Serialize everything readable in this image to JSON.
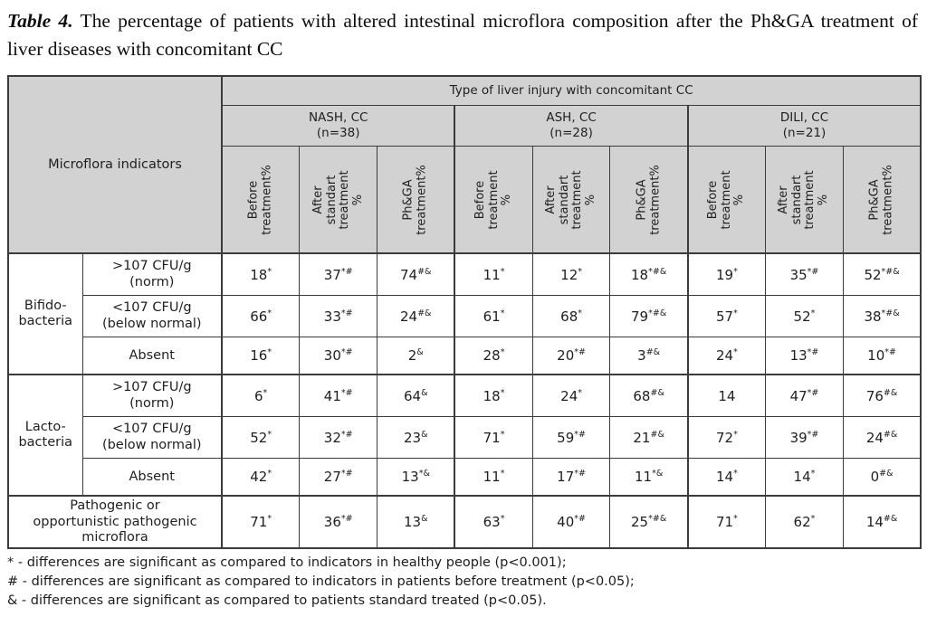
{
  "title": {
    "label": "Table 4.",
    "text": "The percentage of patients with altered intestinal microflora composition after the Ph&GA treatment of liver diseases with concomitant CC"
  },
  "table": {
    "corner_label": "Microflora indicators",
    "top_header": "Type of liver injury with concomitant CC",
    "groups": [
      {
        "name": "NASH, CC\n(n=38)",
        "columns": [
          "Before\ntreatment%",
          "After\nstandart\ntreatment\n%",
          "Ph&GA\ntreatment%"
        ]
      },
      {
        "name": "ASH, CC\n(n=28)",
        "columns": [
          "Before\ntreatment\n%",
          "After\nstandart\ntreatment\n%",
          "Ph&GA\ntreatment%"
        ]
      },
      {
        "name": "DILI, CC\n(n=21)",
        "columns": [
          "Before\ntreatment\n%",
          "After\nstandart\ntreatment\n%",
          "Ph&GA\ntreatment%"
        ]
      }
    ],
    "row_groups": [
      {
        "label": "Bifido-\nbacteria",
        "rows": [
          {
            "indicator": ">107 CFU/g\n(norm)",
            "cells": [
              {
                "v": "18",
                "s": "*"
              },
              {
                "v": "37",
                "s": "*#"
              },
              {
                "v": "74",
                "s": "#&"
              },
              {
                "v": "11",
                "s": "*"
              },
              {
                "v": "12",
                "s": "*"
              },
              {
                "v": "18",
                "s": "*#&"
              },
              {
                "v": "19",
                "s": "*"
              },
              {
                "v": "35",
                "s": "*#"
              },
              {
                "v": "52",
                "s": "*#&"
              }
            ]
          },
          {
            "indicator": "<107 CFU/g\n(below normal)",
            "cells": [
              {
                "v": "66",
                "s": "*"
              },
              {
                "v": "33",
                "s": "*#"
              },
              {
                "v": "24",
                "s": "#&"
              },
              {
                "v": "61",
                "s": "*"
              },
              {
                "v": "68",
                "s": "*"
              },
              {
                "v": "79",
                "s": "*#&"
              },
              {
                "v": "57",
                "s": "*"
              },
              {
                "v": "52",
                "s": "*"
              },
              {
                "v": "38",
                "s": "*#&"
              }
            ]
          },
          {
            "indicator": "Absent",
            "cells": [
              {
                "v": "16",
                "s": "*"
              },
              {
                "v": "30",
                "s": "*#"
              },
              {
                "v": "2",
                "s": "&"
              },
              {
                "v": "28",
                "s": "*"
              },
              {
                "v": "20",
                "s": "*#"
              },
              {
                "v": "3",
                "s": "#&"
              },
              {
                "v": "24",
                "s": "*"
              },
              {
                "v": "13",
                "s": "*#"
              },
              {
                "v": "10",
                "s": "*#"
              }
            ]
          }
        ]
      },
      {
        "label": "Lacto-\nbacteria",
        "rows": [
          {
            "indicator": ">107 CFU/g\n(norm)",
            "cells": [
              {
                "v": "6",
                "s": "*"
              },
              {
                "v": "41",
                "s": "*#"
              },
              {
                "v": "64",
                "s": "&"
              },
              {
                "v": "18",
                "s": "*"
              },
              {
                "v": "24",
                "s": "*"
              },
              {
                "v": "68",
                "s": "#&"
              },
              {
                "v": "14",
                "s": ""
              },
              {
                "v": "47",
                "s": "*#"
              },
              {
                "v": "76",
                "s": "#&"
              }
            ]
          },
          {
            "indicator": "<107 CFU/g\n(below normal)",
            "cells": [
              {
                "v": "52",
                "s": "*"
              },
              {
                "v": "32",
                "s": "*#"
              },
              {
                "v": "23",
                "s": "&"
              },
              {
                "v": "71",
                "s": "*"
              },
              {
                "v": "59",
                "s": "*#"
              },
              {
                "v": "21",
                "s": "#&"
              },
              {
                "v": "72",
                "s": "*"
              },
              {
                "v": "39",
                "s": "*#"
              },
              {
                "v": "24",
                "s": "#&"
              }
            ]
          },
          {
            "indicator": "Absent",
            "cells": [
              {
                "v": "42",
                "s": "*"
              },
              {
                "v": "27",
                "s": "*#"
              },
              {
                "v": "13",
                "s": "*&"
              },
              {
                "v": "11",
                "s": "*"
              },
              {
                "v": "17",
                "s": "*#"
              },
              {
                "v": "11",
                "s": "*&"
              },
              {
                "v": "14",
                "s": "*"
              },
              {
                "v": "14",
                "s": "*"
              },
              {
                "v": "0",
                "s": "#&"
              }
            ]
          }
        ]
      }
    ],
    "summary_row": {
      "label": "Pathogenic or\nopportunistic pathogenic\nmicroflora",
      "cells": [
        {
          "v": "71",
          "s": "*"
        },
        {
          "v": "36",
          "s": "*#"
        },
        {
          "v": "13",
          "s": "&"
        },
        {
          "v": "63",
          "s": "*"
        },
        {
          "v": "40",
          "s": "*#"
        },
        {
          "v": "25",
          "s": "*#&"
        },
        {
          "v": "71",
          "s": "*"
        },
        {
          "v": "62",
          "s": "*"
        },
        {
          "v": "14",
          "s": "#&"
        }
      ]
    }
  },
  "footnotes": [
    "* - differences are significant as compared to indicators in healthy people (p<0.001);",
    "# - differences are significant as compared to indicators in patients before treatment (p<0.05);",
    "& - differences are significant as compared to patients standard treated (p<0.05)."
  ],
  "colors": {
    "header_bg": "#d2d2d2",
    "border": "#3b3b3b",
    "text": "#1f1f1f"
  }
}
